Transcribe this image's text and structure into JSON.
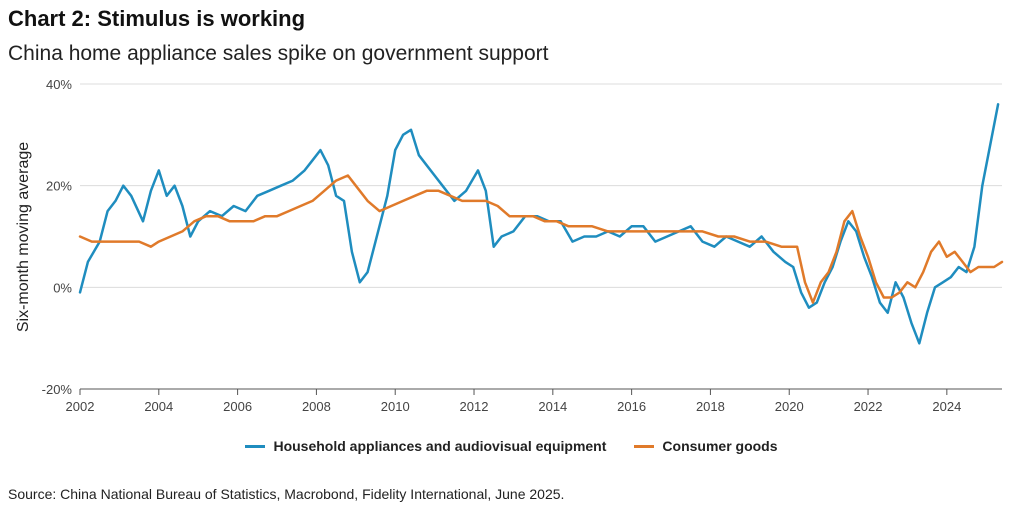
{
  "title": "Chart 2: Stimulus is working",
  "subtitle": "China home appliance sales spike on government support",
  "source": "Source: China National Bureau of Statistics, Macrobond, Fidelity International, June 2025.",
  "chart_data": {
    "type": "line",
    "ylabel": "Six-month moving average",
    "xlabel": "",
    "ylim": [
      -20,
      40
    ],
    "y_ticks": [
      -20,
      0,
      20,
      40
    ],
    "y_tick_labels": [
      "-20%",
      "0%",
      "20%",
      "40%"
    ],
    "xlim": [
      2002,
      2025.4
    ],
    "x_ticks": [
      2002,
      2004,
      2006,
      2008,
      2010,
      2012,
      2014,
      2016,
      2018,
      2020,
      2022,
      2024
    ],
    "x_tick_labels": [
      "2002",
      "2004",
      "2006",
      "2008",
      "2010",
      "2012",
      "2014",
      "2016",
      "2018",
      "2020",
      "2022",
      "2024"
    ],
    "grid": "horizontal",
    "legend_position": "bottom",
    "series": [
      {
        "name": "Household appliances and audiovisual equipment",
        "color": "#1f8dbf",
        "x": [
          2002.0,
          2002.2,
          2002.5,
          2002.7,
          2002.9,
          2003.1,
          2003.3,
          2003.6,
          2003.8,
          2004.0,
          2004.2,
          2004.4,
          2004.6,
          2004.8,
          2005.0,
          2005.3,
          2005.6,
          2005.9,
          2006.2,
          2006.5,
          2006.8,
          2007.1,
          2007.4,
          2007.7,
          2007.9,
          2008.1,
          2008.3,
          2008.5,
          2008.7,
          2008.9,
          2009.1,
          2009.3,
          2009.5,
          2009.8,
          2010.0,
          2010.2,
          2010.4,
          2010.6,
          2010.8,
          2011.0,
          2011.2,
          2011.5,
          2011.8,
          2012.1,
          2012.3,
          2012.5,
          2012.7,
          2013.0,
          2013.3,
          2013.6,
          2013.9,
          2014.2,
          2014.5,
          2014.8,
          2015.1,
          2015.4,
          2015.7,
          2016.0,
          2016.3,
          2016.6,
          2016.9,
          2017.2,
          2017.5,
          2017.8,
          2018.1,
          2018.4,
          2018.7,
          2019.0,
          2019.3,
          2019.6,
          2019.9,
          2020.1,
          2020.3,
          2020.5,
          2020.7,
          2020.9,
          2021.1,
          2021.3,
          2021.5,
          2021.7,
          2021.9,
          2022.1,
          2022.3,
          2022.5,
          2022.7,
          2022.9,
          2023.1,
          2023.3,
          2023.5,
          2023.7,
          2023.9,
          2024.1,
          2024.3,
          2024.5,
          2024.7,
          2024.9,
          2025.1,
          2025.3
        ],
        "values": [
          -1,
          5,
          9,
          15,
          17,
          20,
          18,
          13,
          19,
          23,
          18,
          20,
          16,
          10,
          13,
          15,
          14,
          16,
          15,
          18,
          19,
          20,
          21,
          23,
          25,
          27,
          24,
          18,
          17,
          7,
          1,
          3,
          9,
          18,
          27,
          30,
          31,
          26,
          24,
          22,
          20,
          17,
          19,
          23,
          19,
          8,
          10,
          11,
          14,
          14,
          13,
          13,
          9,
          10,
          10,
          11,
          10,
          12,
          12,
          9,
          10,
          11,
          12,
          9,
          8,
          10,
          9,
          8,
          10,
          7,
          5,
          4,
          -1,
          -4,
          -3,
          1,
          4,
          9,
          13,
          11,
          6,
          2,
          -3,
          -5,
          1,
          -2,
          -7,
          -11,
          -5,
          0,
          1,
          2,
          4,
          3,
          8,
          20,
          28,
          36
        ]
      },
      {
        "name": "Consumer goods",
        "color": "#e07a2a",
        "x": [
          2002.0,
          2002.3,
          2002.6,
          2002.9,
          2003.2,
          2003.5,
          2003.8,
          2004.0,
          2004.3,
          2004.6,
          2004.9,
          2005.2,
          2005.5,
          2005.8,
          2006.1,
          2006.4,
          2006.7,
          2007.0,
          2007.3,
          2007.6,
          2007.9,
          2008.2,
          2008.5,
          2008.8,
          2009.0,
          2009.3,
          2009.6,
          2009.9,
          2010.2,
          2010.5,
          2010.8,
          2011.1,
          2011.4,
          2011.7,
          2012.0,
          2012.3,
          2012.6,
          2012.9,
          2013.2,
          2013.5,
          2013.8,
          2014.1,
          2014.4,
          2014.7,
          2015.0,
          2015.4,
          2015.8,
          2016.2,
          2016.6,
          2017.0,
          2017.4,
          2017.8,
          2018.2,
          2018.6,
          2019.0,
          2019.4,
          2019.8,
          2020.0,
          2020.2,
          2020.4,
          2020.6,
          2020.8,
          2021.0,
          2021.2,
          2021.4,
          2021.6,
          2021.8,
          2022.0,
          2022.2,
          2022.4,
          2022.6,
          2022.8,
          2023.0,
          2023.2,
          2023.4,
          2023.6,
          2023.8,
          2024.0,
          2024.2,
          2024.4,
          2024.6,
          2024.8,
          2025.0,
          2025.2,
          2025.4
        ],
        "values": [
          10,
          9,
          9,
          9,
          9,
          9,
          8,
          9,
          10,
          11,
          13,
          14,
          14,
          13,
          13,
          13,
          14,
          14,
          15,
          16,
          17,
          19,
          21,
          22,
          20,
          17,
          15,
          16,
          17,
          18,
          19,
          19,
          18,
          17,
          17,
          17,
          16,
          14,
          14,
          14,
          13,
          13,
          12,
          12,
          12,
          11,
          11,
          11,
          11,
          11,
          11,
          11,
          10,
          10,
          9,
          9,
          8,
          8,
          8,
          1,
          -3,
          1,
          3,
          7,
          13,
          15,
          10,
          6,
          1,
          -2,
          -2,
          -1,
          1,
          0,
          3,
          7,
          9,
          6,
          7,
          5,
          3,
          4,
          4,
          4,
          5
        ]
      }
    ]
  }
}
